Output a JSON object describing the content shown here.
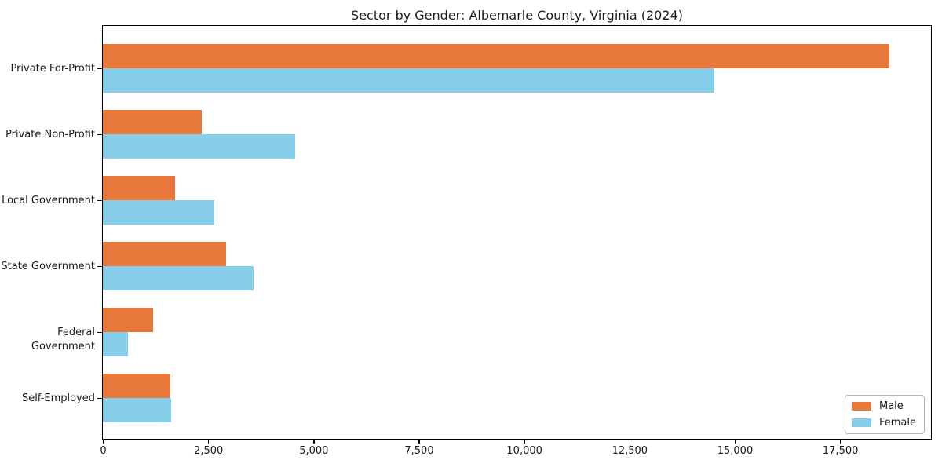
{
  "chart_data": {
    "type": "bar",
    "orientation": "horizontal",
    "title": "Sector by Gender: Albemarle County, Virginia (2024)",
    "categories": [
      "Private For-Profit",
      "Private Non-Profit",
      "Local Government",
      "State Government",
      "Federal Government",
      "Self-Employed"
    ],
    "series": [
      {
        "name": "Male",
        "color": "#E8773B",
        "values": [
          18670,
          2340,
          1720,
          2920,
          1190,
          1600
        ]
      },
      {
        "name": "Female",
        "color": "#87CEEB",
        "values": [
          14510,
          4570,
          2650,
          3570,
          590,
          1620
        ]
      }
    ],
    "xlabel": "",
    "ylabel": "",
    "xlim": [
      0,
      19640
    ],
    "xticks": [
      0,
      2500,
      5000,
      7500,
      10000,
      12500,
      15000,
      17500
    ],
    "xtick_labels": [
      "0",
      "2,500",
      "5,000",
      "7,500",
      "10,000",
      "12,500",
      "15,000",
      "17,500"
    ],
    "grid": false,
    "legend_position": "lower right",
    "colors": {
      "background": "#FFFFFF",
      "spine": "#000000",
      "text": "#1A1A1A",
      "legend_border": "#B4B4B4"
    }
  }
}
